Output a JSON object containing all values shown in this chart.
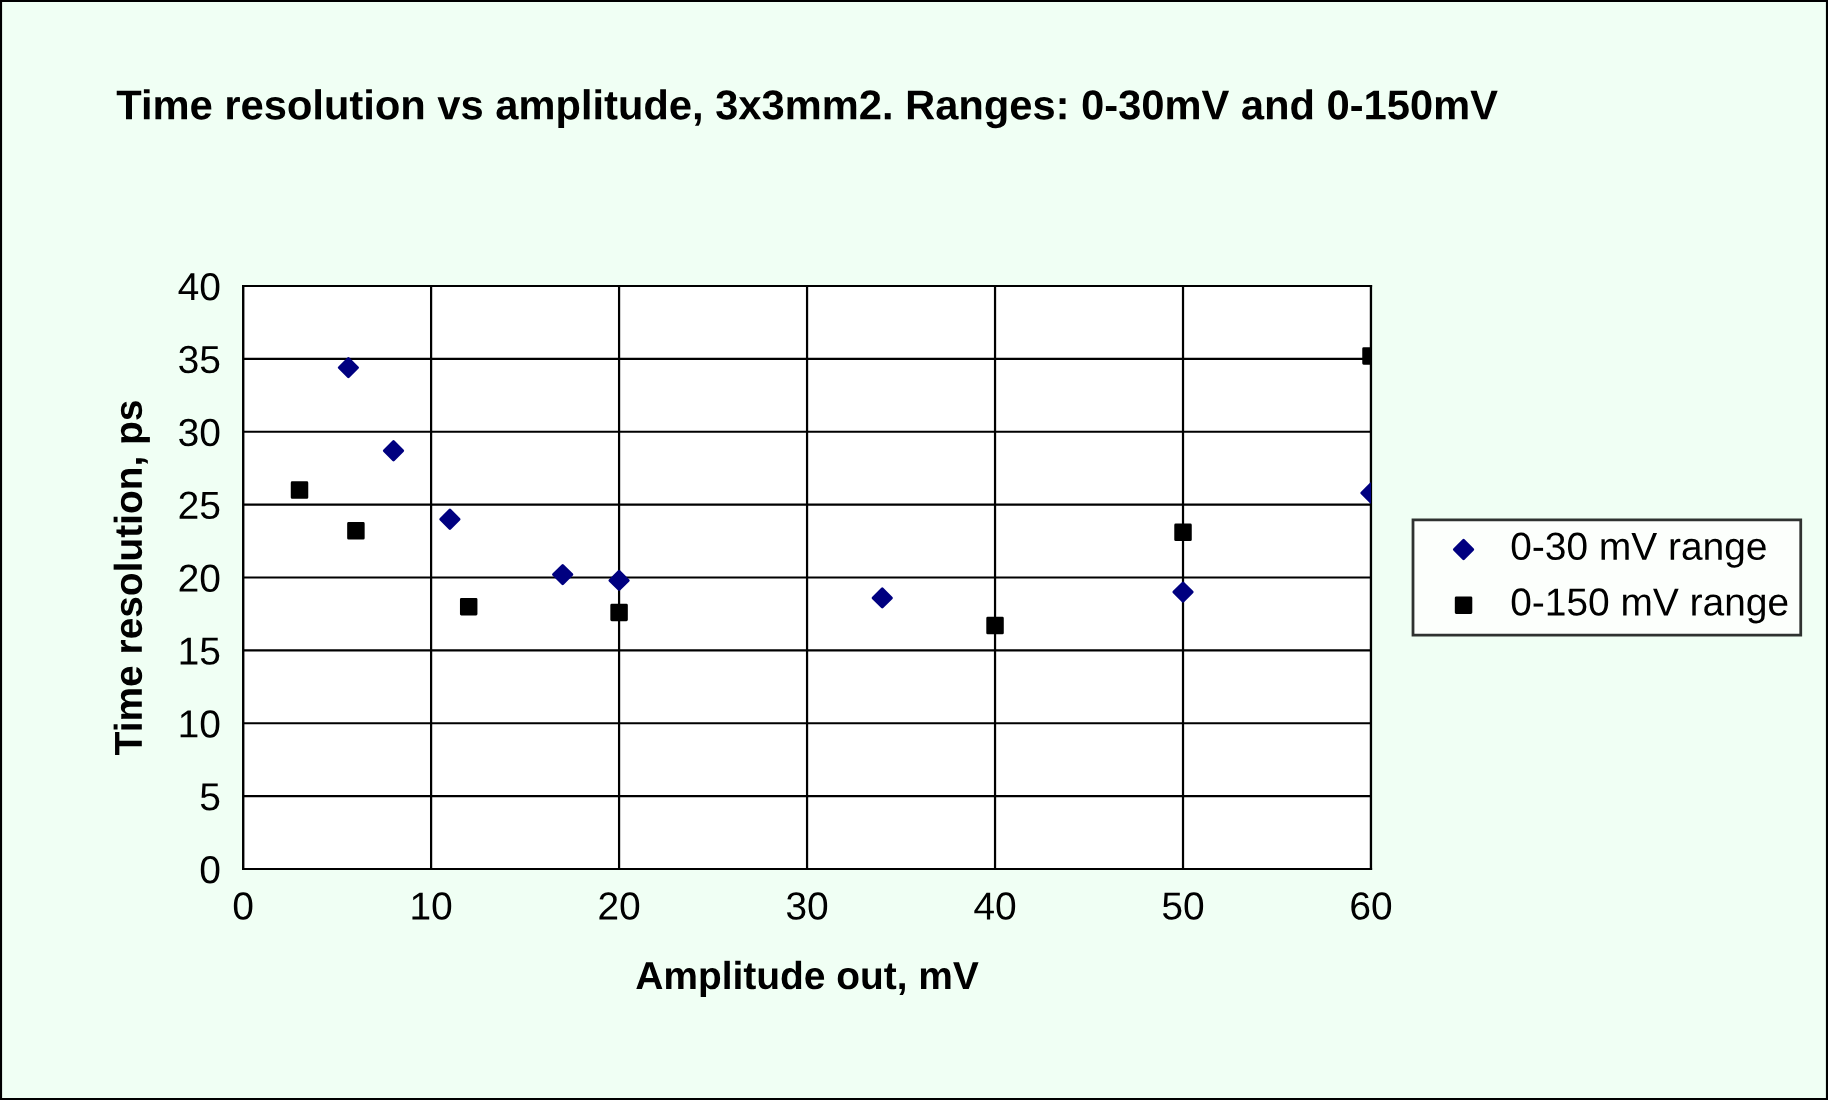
{
  "chart_data": {
    "type": "scatter",
    "title": "Time resolution vs amplitude, 3x3mm2. Ranges: 0-30mV and 0-150mV",
    "xlabel": "Amplitude out, mV",
    "ylabel": "Time resolution, ps",
    "xlim": [
      0,
      60
    ],
    "xticks": [
      0,
      10,
      20,
      30,
      40,
      50,
      60
    ],
    "ylim": [
      0,
      40
    ],
    "yticks": [
      0,
      5,
      10,
      15,
      20,
      25,
      30,
      35,
      40
    ],
    "grid": true,
    "legend": "right",
    "series": [
      {
        "name": "0-30 mV range",
        "color": "#000080",
        "marker": "diamond",
        "x": [
          5.6,
          8,
          11,
          17,
          20,
          34,
          50,
          60
        ],
        "values": [
          34.4,
          28.7,
          24,
          20.2,
          19.8,
          18.6,
          19,
          25.8
        ]
      },
      {
        "name": "0-150 mV range",
        "color": "#000000",
        "marker": "square",
        "x": [
          3,
          6,
          12,
          20,
          40,
          50,
          60
        ],
        "values": [
          26,
          23.2,
          18,
          17.6,
          16.7,
          23.1,
          35.2
        ]
      }
    ]
  }
}
